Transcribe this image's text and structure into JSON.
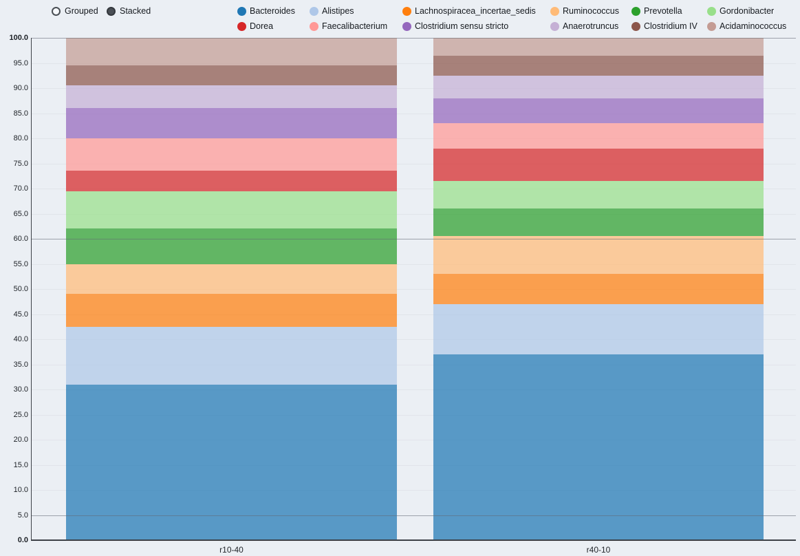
{
  "controls": {
    "grouped_label": "Grouped",
    "stacked_label": "Stacked",
    "selected": "Stacked"
  },
  "chart_data": {
    "type": "bar",
    "subtype": "stacked-percentage",
    "categories": [
      "r10-40",
      "r40-10"
    ],
    "series": [
      {
        "name": "Bacteroides",
        "color": "#1f77b4",
        "values": [
          31.0,
          37.0
        ]
      },
      {
        "name": "Alistipes",
        "color": "#aec7e8",
        "values": [
          11.5,
          10.0
        ]
      },
      {
        "name": "Lachnospiracea_incertae_sedis",
        "color": "#ff7f0e",
        "values": [
          6.5,
          6.0
        ]
      },
      {
        "name": "Ruminococcus",
        "color": "#ffbb78",
        "values": [
          6.0,
          7.5
        ]
      },
      {
        "name": "Prevotella",
        "color": "#2ca02c",
        "values": [
          7.0,
          5.5
        ]
      },
      {
        "name": "Gordonibacter",
        "color": "#98df8a",
        "values": [
          7.5,
          5.5
        ]
      },
      {
        "name": "Dorea",
        "color": "#d62728",
        "values": [
          4.0,
          6.5
        ]
      },
      {
        "name": "Faecalibacterium",
        "color": "#ff9896",
        "values": [
          6.5,
          5.0
        ]
      },
      {
        "name": "Clostridium sensu stricto",
        "color": "#9467bd",
        "values": [
          6.0,
          5.0
        ]
      },
      {
        "name": "Anaerotruncus",
        "color": "#c5b0d5",
        "values": [
          4.5,
          4.5
        ]
      },
      {
        "name": "Clostridium IV",
        "color": "#8c564b",
        "values": [
          4.0,
          4.0
        ]
      },
      {
        "name": "Acidaminococcus",
        "color": "#c49c94",
        "values": [
          5.5,
          3.5
        ]
      }
    ],
    "ylim": [
      0,
      100
    ],
    "ytick_step": 5,
    "ytick_labels": [
      "0.0",
      "5.0",
      "10.0",
      "15.0",
      "20.0",
      "25.0",
      "30.0",
      "35.0",
      "40.0",
      "45.0",
      "50.0",
      "55.0",
      "60.0",
      "65.0",
      "70.0",
      "75.0",
      "80.0",
      "85.0",
      "90.0",
      "95.0",
      "100.0"
    ],
    "grid_emphasis_values": [
      100,
      60,
      5
    ],
    "legend_position": "top",
    "bar_opacity": 0.72,
    "background_color": "#ebeff4",
    "title": "",
    "xlabel": "",
    "ylabel": ""
  }
}
